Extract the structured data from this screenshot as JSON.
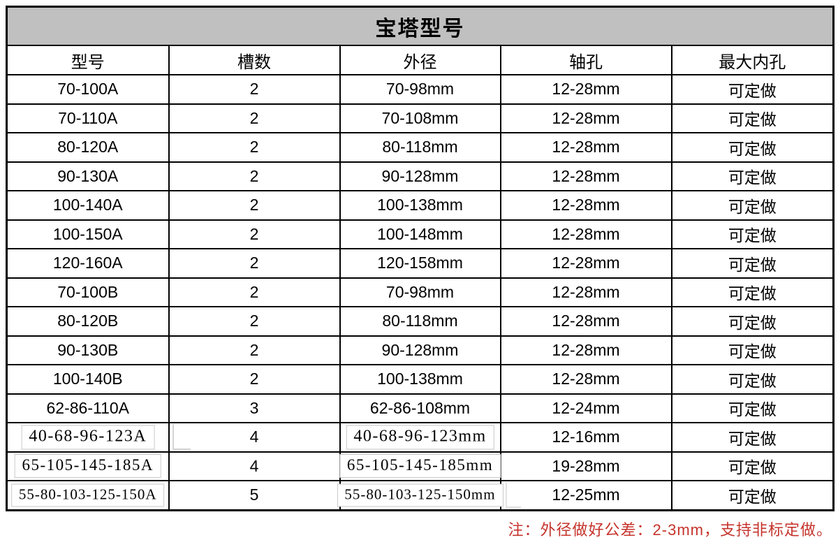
{
  "title": "宝塔型号",
  "columns": [
    {
      "key": "model",
      "label": "型号"
    },
    {
      "key": "grooves",
      "label": "槽数"
    },
    {
      "key": "od",
      "label": "外径"
    },
    {
      "key": "bore",
      "label": "轴孔"
    },
    {
      "key": "max_bore",
      "label": "最大内孔"
    }
  ],
  "rows": [
    {
      "model": "70-100A",
      "grooves": "2",
      "od": "70-98mm",
      "bore": "12-28mm",
      "max_bore": "可定做",
      "patched": false
    },
    {
      "model": "70-110A",
      "grooves": "2",
      "od": "70-108mm",
      "bore": "12-28mm",
      "max_bore": "可定做",
      "patched": false
    },
    {
      "model": "80-120A",
      "grooves": "2",
      "od": "80-118mm",
      "bore": "12-28mm",
      "max_bore": "可定做",
      "patched": false
    },
    {
      "model": "90-130A",
      "grooves": "2",
      "od": "90-128mm",
      "bore": "12-28mm",
      "max_bore": "可定做",
      "patched": false
    },
    {
      "model": "100-140A",
      "grooves": "2",
      "od": "100-138mm",
      "bore": "12-28mm",
      "max_bore": "可定做",
      "patched": false
    },
    {
      "model": "100-150A",
      "grooves": "2",
      "od": "100-148mm",
      "bore": "12-28mm",
      "max_bore": "可定做",
      "patched": false
    },
    {
      "model": "120-160A",
      "grooves": "2",
      "od": "120-158mm",
      "bore": "12-28mm",
      "max_bore": "可定做",
      "patched": false
    },
    {
      "model": "70-100B",
      "grooves": "2",
      "od": "70-98mm",
      "bore": "12-28mm",
      "max_bore": "可定做",
      "patched": false
    },
    {
      "model": "80-120B",
      "grooves": "2",
      "od": "80-118mm",
      "bore": "12-28mm",
      "max_bore": "可定做",
      "patched": false
    },
    {
      "model": "90-130B",
      "grooves": "2",
      "od": "90-128mm",
      "bore": "12-28mm",
      "max_bore": "可定做",
      "patched": false
    },
    {
      "model": "100-140B",
      "grooves": "2",
      "od": "100-138mm",
      "bore": "12-28mm",
      "max_bore": "可定做",
      "patched": false
    },
    {
      "model": "62-86-110A",
      "grooves": "3",
      "od": "62-86-108mm",
      "bore": "12-24mm",
      "max_bore": "可定做",
      "patched": false
    },
    {
      "model": "40-68-96-123A",
      "grooves": "4",
      "od": "40-68-96-123mm",
      "bore": "12-16mm",
      "max_bore": "可定做",
      "patched": true
    },
    {
      "model": "65-105-145-185A",
      "grooves": "4",
      "od": "65-105-145-185mm",
      "bore": "19-28mm",
      "max_bore": "可定做",
      "patched": true
    },
    {
      "model": "55-80-103-125-150A",
      "grooves": "5",
      "od": "55-80-103-125-150mm",
      "bore": "12-25mm",
      "max_bore": "可定做",
      "patched": true
    }
  ],
  "note": "注：外径做好公差：2-3mm，支持非标定做。",
  "colors": {
    "title_bg": "#c0c0c0",
    "grid_border": "#000000",
    "note_red": "#c5342c",
    "patch_border": "#c9c9c9"
  }
}
